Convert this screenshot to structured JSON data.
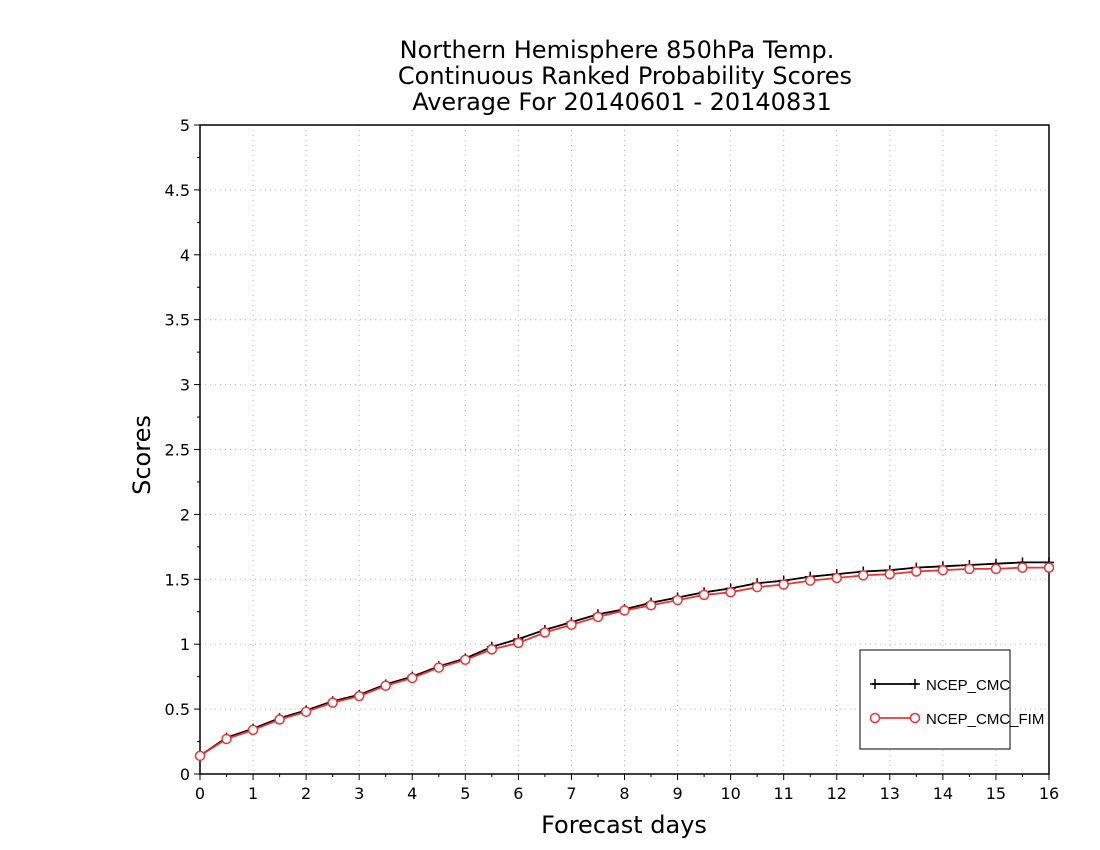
{
  "chart_data": {
    "type": "line",
    "title_lines": [
      "Northern Hemisphere 850hPa Temp.",
      "Continuous Ranked Probability Scores",
      "Average For 20140601 - 20140831"
    ],
    "xlabel": "Forecast days",
    "ylabel": "Scores",
    "xlim": [
      0,
      16
    ],
    "ylim": [
      0,
      5
    ],
    "xticks": [
      0,
      1,
      2,
      3,
      4,
      5,
      6,
      7,
      8,
      9,
      10,
      11,
      12,
      13,
      14,
      15,
      16
    ],
    "xtick_labels": [
      "0",
      "1",
      "2",
      "3",
      "4",
      "5",
      "6",
      "7",
      "8",
      "9",
      "10",
      "11",
      "12",
      "13",
      "14",
      "15",
      "16"
    ],
    "yticks": [
      0,
      0.5,
      1,
      1.5,
      2,
      2.5,
      3,
      3.5,
      4,
      4.5,
      5
    ],
    "ytick_labels": [
      "0",
      "0.5",
      "1",
      "1.5",
      "2",
      "2.5",
      "3",
      "3.5",
      "4",
      "4.5",
      "5"
    ],
    "grid": true,
    "legend_position": "bottom-right",
    "x": [
      0,
      0.5,
      1,
      1.5,
      2,
      2.5,
      3,
      3.5,
      4,
      4.5,
      5,
      5.5,
      6,
      6.5,
      7,
      7.5,
      8,
      8.5,
      9,
      9.5,
      10,
      10.5,
      11,
      11.5,
      12,
      12.5,
      13,
      13.5,
      14,
      14.5,
      15,
      15.5,
      16
    ],
    "series": [
      {
        "name": "NCEP_CMC",
        "color": "#000000",
        "marker": "plus",
        "values": [
          0.14,
          0.28,
          0.35,
          0.43,
          0.49,
          0.56,
          0.61,
          0.69,
          0.75,
          0.83,
          0.89,
          0.98,
          1.04,
          1.11,
          1.17,
          1.23,
          1.27,
          1.32,
          1.36,
          1.4,
          1.43,
          1.47,
          1.49,
          1.52,
          1.54,
          1.56,
          1.57,
          1.59,
          1.6,
          1.61,
          1.62,
          1.63,
          1.63
        ]
      },
      {
        "name": "NCEP_CMC_FIM",
        "color": "#ee3333",
        "marker": "circle",
        "values": [
          0.14,
          0.27,
          0.34,
          0.42,
          0.48,
          0.55,
          0.6,
          0.68,
          0.74,
          0.82,
          0.88,
          0.96,
          1.01,
          1.09,
          1.15,
          1.21,
          1.26,
          1.3,
          1.34,
          1.38,
          1.4,
          1.44,
          1.46,
          1.49,
          1.51,
          1.53,
          1.54,
          1.56,
          1.57,
          1.58,
          1.58,
          1.59,
          1.59
        ]
      }
    ]
  }
}
